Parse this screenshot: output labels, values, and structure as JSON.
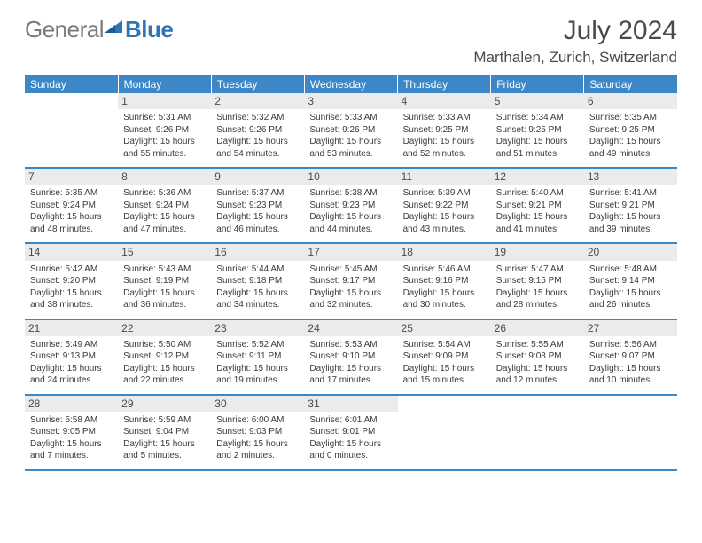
{
  "logo": {
    "gray": "General",
    "blue": "Blue"
  },
  "title": "July 2024",
  "location": "Marthalen, Zurich, Switzerland",
  "colors": {
    "header_bg": "#3b87c8",
    "header_text": "#ffffff",
    "daynum_bg": "#ebebeb",
    "row_border": "#3b87c8",
    "body_text": "#3a3a3a",
    "logo_gray": "#7a7a7a",
    "logo_blue": "#2f74b5"
  },
  "fonts": {
    "body_pt": 10,
    "daynum_pt": 12,
    "header_pt": 12,
    "title_pt": 30,
    "location_pt": 17
  },
  "weekdays": [
    "Sunday",
    "Monday",
    "Tuesday",
    "Wednesday",
    "Thursday",
    "Friday",
    "Saturday"
  ],
  "weeks": [
    [
      {
        "blank": true
      },
      {
        "day": "1",
        "sunrise": "Sunrise: 5:31 AM",
        "sunset": "Sunset: 9:26 PM",
        "dl1": "Daylight: 15 hours",
        "dl2": "and 55 minutes."
      },
      {
        "day": "2",
        "sunrise": "Sunrise: 5:32 AM",
        "sunset": "Sunset: 9:26 PM",
        "dl1": "Daylight: 15 hours",
        "dl2": "and 54 minutes."
      },
      {
        "day": "3",
        "sunrise": "Sunrise: 5:33 AM",
        "sunset": "Sunset: 9:26 PM",
        "dl1": "Daylight: 15 hours",
        "dl2": "and 53 minutes."
      },
      {
        "day": "4",
        "sunrise": "Sunrise: 5:33 AM",
        "sunset": "Sunset: 9:25 PM",
        "dl1": "Daylight: 15 hours",
        "dl2": "and 52 minutes."
      },
      {
        "day": "5",
        "sunrise": "Sunrise: 5:34 AM",
        "sunset": "Sunset: 9:25 PM",
        "dl1": "Daylight: 15 hours",
        "dl2": "and 51 minutes."
      },
      {
        "day": "6",
        "sunrise": "Sunrise: 5:35 AM",
        "sunset": "Sunset: 9:25 PM",
        "dl1": "Daylight: 15 hours",
        "dl2": "and 49 minutes."
      }
    ],
    [
      {
        "day": "7",
        "sunrise": "Sunrise: 5:35 AM",
        "sunset": "Sunset: 9:24 PM",
        "dl1": "Daylight: 15 hours",
        "dl2": "and 48 minutes."
      },
      {
        "day": "8",
        "sunrise": "Sunrise: 5:36 AM",
        "sunset": "Sunset: 9:24 PM",
        "dl1": "Daylight: 15 hours",
        "dl2": "and 47 minutes."
      },
      {
        "day": "9",
        "sunrise": "Sunrise: 5:37 AM",
        "sunset": "Sunset: 9:23 PM",
        "dl1": "Daylight: 15 hours",
        "dl2": "and 46 minutes."
      },
      {
        "day": "10",
        "sunrise": "Sunrise: 5:38 AM",
        "sunset": "Sunset: 9:23 PM",
        "dl1": "Daylight: 15 hours",
        "dl2": "and 44 minutes."
      },
      {
        "day": "11",
        "sunrise": "Sunrise: 5:39 AM",
        "sunset": "Sunset: 9:22 PM",
        "dl1": "Daylight: 15 hours",
        "dl2": "and 43 minutes."
      },
      {
        "day": "12",
        "sunrise": "Sunrise: 5:40 AM",
        "sunset": "Sunset: 9:21 PM",
        "dl1": "Daylight: 15 hours",
        "dl2": "and 41 minutes."
      },
      {
        "day": "13",
        "sunrise": "Sunrise: 5:41 AM",
        "sunset": "Sunset: 9:21 PM",
        "dl1": "Daylight: 15 hours",
        "dl2": "and 39 minutes."
      }
    ],
    [
      {
        "day": "14",
        "sunrise": "Sunrise: 5:42 AM",
        "sunset": "Sunset: 9:20 PM",
        "dl1": "Daylight: 15 hours",
        "dl2": "and 38 minutes."
      },
      {
        "day": "15",
        "sunrise": "Sunrise: 5:43 AM",
        "sunset": "Sunset: 9:19 PM",
        "dl1": "Daylight: 15 hours",
        "dl2": "and 36 minutes."
      },
      {
        "day": "16",
        "sunrise": "Sunrise: 5:44 AM",
        "sunset": "Sunset: 9:18 PM",
        "dl1": "Daylight: 15 hours",
        "dl2": "and 34 minutes."
      },
      {
        "day": "17",
        "sunrise": "Sunrise: 5:45 AM",
        "sunset": "Sunset: 9:17 PM",
        "dl1": "Daylight: 15 hours",
        "dl2": "and 32 minutes."
      },
      {
        "day": "18",
        "sunrise": "Sunrise: 5:46 AM",
        "sunset": "Sunset: 9:16 PM",
        "dl1": "Daylight: 15 hours",
        "dl2": "and 30 minutes."
      },
      {
        "day": "19",
        "sunrise": "Sunrise: 5:47 AM",
        "sunset": "Sunset: 9:15 PM",
        "dl1": "Daylight: 15 hours",
        "dl2": "and 28 minutes."
      },
      {
        "day": "20",
        "sunrise": "Sunrise: 5:48 AM",
        "sunset": "Sunset: 9:14 PM",
        "dl1": "Daylight: 15 hours",
        "dl2": "and 26 minutes."
      }
    ],
    [
      {
        "day": "21",
        "sunrise": "Sunrise: 5:49 AM",
        "sunset": "Sunset: 9:13 PM",
        "dl1": "Daylight: 15 hours",
        "dl2": "and 24 minutes."
      },
      {
        "day": "22",
        "sunrise": "Sunrise: 5:50 AM",
        "sunset": "Sunset: 9:12 PM",
        "dl1": "Daylight: 15 hours",
        "dl2": "and 22 minutes."
      },
      {
        "day": "23",
        "sunrise": "Sunrise: 5:52 AM",
        "sunset": "Sunset: 9:11 PM",
        "dl1": "Daylight: 15 hours",
        "dl2": "and 19 minutes."
      },
      {
        "day": "24",
        "sunrise": "Sunrise: 5:53 AM",
        "sunset": "Sunset: 9:10 PM",
        "dl1": "Daylight: 15 hours",
        "dl2": "and 17 minutes."
      },
      {
        "day": "25",
        "sunrise": "Sunrise: 5:54 AM",
        "sunset": "Sunset: 9:09 PM",
        "dl1": "Daylight: 15 hours",
        "dl2": "and 15 minutes."
      },
      {
        "day": "26",
        "sunrise": "Sunrise: 5:55 AM",
        "sunset": "Sunset: 9:08 PM",
        "dl1": "Daylight: 15 hours",
        "dl2": "and 12 minutes."
      },
      {
        "day": "27",
        "sunrise": "Sunrise: 5:56 AM",
        "sunset": "Sunset: 9:07 PM",
        "dl1": "Daylight: 15 hours",
        "dl2": "and 10 minutes."
      }
    ],
    [
      {
        "day": "28",
        "sunrise": "Sunrise: 5:58 AM",
        "sunset": "Sunset: 9:05 PM",
        "dl1": "Daylight: 15 hours",
        "dl2": "and 7 minutes."
      },
      {
        "day": "29",
        "sunrise": "Sunrise: 5:59 AM",
        "sunset": "Sunset: 9:04 PM",
        "dl1": "Daylight: 15 hours",
        "dl2": "and 5 minutes."
      },
      {
        "day": "30",
        "sunrise": "Sunrise: 6:00 AM",
        "sunset": "Sunset: 9:03 PM",
        "dl1": "Daylight: 15 hours",
        "dl2": "and 2 minutes."
      },
      {
        "day": "31",
        "sunrise": "Sunrise: 6:01 AM",
        "sunset": "Sunset: 9:01 PM",
        "dl1": "Daylight: 15 hours",
        "dl2": "and 0 minutes."
      },
      {
        "blank": true
      },
      {
        "blank": true
      },
      {
        "blank": true
      }
    ]
  ]
}
